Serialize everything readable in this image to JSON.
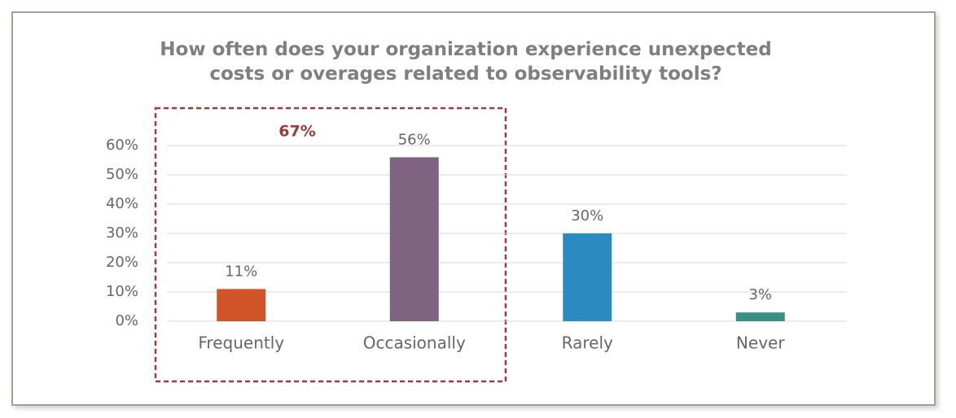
{
  "chart_data": {
    "type": "bar",
    "title": "How often does your organization experience unexpected costs or overages related to observability tools?",
    "categories": [
      "Frequently",
      "Occasionally",
      "Rarely",
      "Never"
    ],
    "values": [
      11,
      56,
      30,
      3
    ],
    "value_labels": [
      "11%",
      "56%",
      "30%",
      "3%"
    ],
    "colors": [
      "#d05427",
      "#7f6381",
      "#2a8bc0",
      "#3b8f86"
    ],
    "ylim": [
      0,
      60
    ],
    "yticks": [
      {
        "value": 0,
        "label": "0%"
      },
      {
        "value": 10,
        "label": "10%"
      },
      {
        "value": 20,
        "label": "20%"
      },
      {
        "value": 30,
        "label": "30%"
      },
      {
        "value": 40,
        "label": "40%"
      },
      {
        "value": 50,
        "label": "50%"
      },
      {
        "value": 60,
        "label": "60%"
      }
    ],
    "grid": true,
    "annotation": "67%"
  }
}
